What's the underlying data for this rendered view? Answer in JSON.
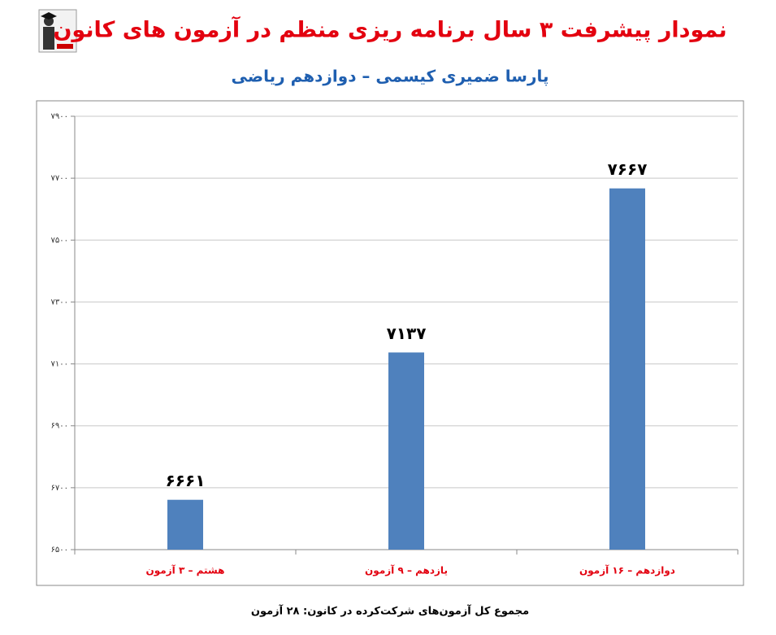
{
  "chart_data": {
    "type": "bar",
    "title": "نمودار پیشرفت ۳ سال برنامه ریزی منظم در آزمون های کانون",
    "subtitle": "پارسا ضمیری کیسمی – دوازدهم ریاضی",
    "footer": "مجموع کل آزمون‌های شرکت‌کرده در کانون: ۲۸ آزمون",
    "categories": [
      "هشتم – ۳ آزمون",
      "یازدهم – ۹ آزمون",
      "دوازدهم – ۱۶ آزمون"
    ],
    "values": [
      6661,
      7137,
      7667
    ],
    "value_labels": [
      "۶۶۶۱",
      "۷۱۳۷",
      "۷۶۶۷"
    ],
    "color": "#4f81bd",
    "ylim": [
      6500,
      7900
    ],
    "yticks": [
      {
        "value": 6500,
        "label": "۶۵۰۰"
      },
      {
        "value": 6700,
        "label": "۶۷۰۰"
      },
      {
        "value": 6900,
        "label": "۶۹۰۰"
      },
      {
        "value": 7100,
        "label": "۷۱۰۰"
      },
      {
        "value": 7300,
        "label": "۷۳۰۰"
      },
      {
        "value": 7500,
        "label": "۷۵۰۰"
      },
      {
        "value": 7700,
        "label": "۷۷۰۰"
      },
      {
        "value": 7900,
        "label": "۷۹۰۰"
      }
    ],
    "grid": true
  }
}
